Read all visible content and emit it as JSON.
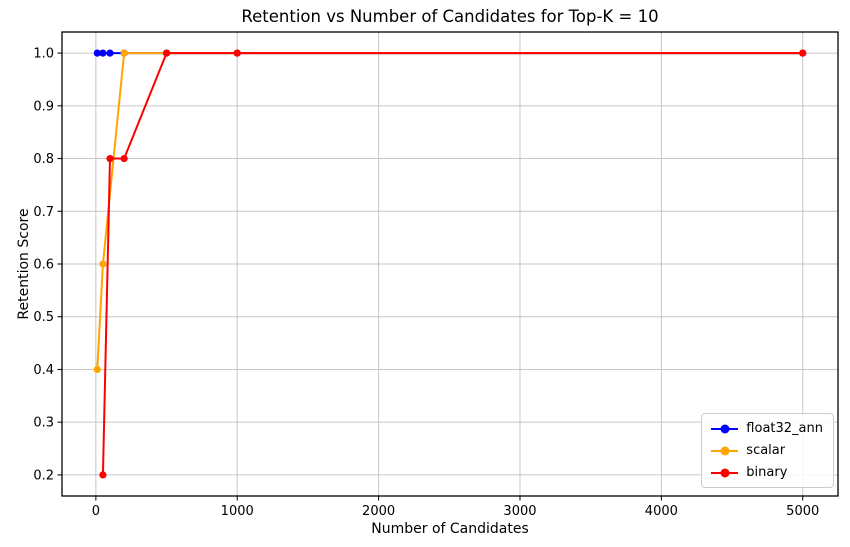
{
  "chart_data": {
    "type": "line",
    "title": "Retention vs Number of Candidates for Top-K = 10",
    "xlabel": "Number of Candidates",
    "ylabel": "Retention Score",
    "xlim": [
      -239.5,
      5249.5
    ],
    "ylim": [
      0.16,
      1.04
    ],
    "x_ticks": [
      0,
      1000,
      2000,
      3000,
      4000,
      5000
    ],
    "y_ticks": [
      0.2,
      0.3,
      0.4,
      0.5,
      0.6,
      0.7,
      0.8,
      0.9,
      1.0
    ],
    "grid": true,
    "grid_color": "#c6c6c6",
    "legend_position": "lower right",
    "series": [
      {
        "name": "float32_ann",
        "color": "#0000ff",
        "x": [
          10,
          50,
          100,
          200,
          500,
          1000,
          5000
        ],
        "y": [
          1.0,
          1.0,
          1.0,
          1.0,
          1.0,
          1.0,
          1.0
        ]
      },
      {
        "name": "scalar",
        "color": "#ffa500",
        "x": [
          10,
          50,
          200,
          500,
          1000,
          5000
        ],
        "y": [
          0.4,
          0.6,
          1.0,
          1.0,
          1.0,
          1.0
        ]
      },
      {
        "name": "binary",
        "color": "#ff0000",
        "x": [
          50,
          100,
          200,
          500,
          1000,
          5000
        ],
        "y": [
          0.2,
          0.8,
          0.8,
          1.0,
          1.0,
          1.0
        ]
      }
    ]
  }
}
